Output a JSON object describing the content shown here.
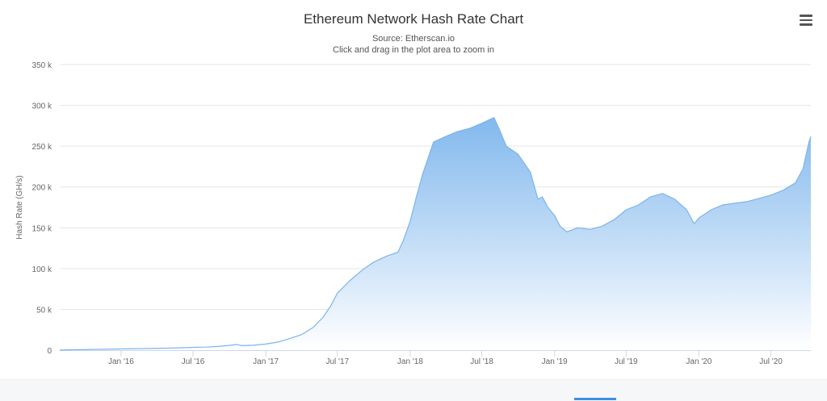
{
  "chart_data": {
    "type": "area",
    "title": "Ethereum Network Hash Rate Chart",
    "subtitle_lines": [
      "Source: Etherscan.io",
      "Click and drag in the plot area to zoom in"
    ],
    "ylabel": "Hash Rate (GH/s)",
    "xlabel": "",
    "ylim": [
      0,
      350000
    ],
    "y_ticks": [
      0,
      50000,
      100000,
      150000,
      200000,
      250000,
      300000,
      350000
    ],
    "y_tick_labels": [
      "0",
      "50 k",
      "100 k",
      "150 k",
      "200 k",
      "250 k",
      "300 k",
      "350 k"
    ],
    "x_tick_labels": [
      "Jan '16",
      "Jul '16",
      "Jan '17",
      "Jul '17",
      "Jan '18",
      "Jul '18",
      "Jan '19",
      "Jul '19",
      "Jan '20",
      "Jul '20"
    ],
    "x_tick_dates": [
      "2016-01-01",
      "2016-07-01",
      "2017-01-01",
      "2017-07-01",
      "2018-01-01",
      "2018-07-01",
      "2019-01-01",
      "2019-07-01",
      "2020-01-01",
      "2020-07-01"
    ],
    "x_range": [
      "2015-07-30",
      "2020-10-10"
    ],
    "grid": true,
    "legend": "none",
    "colors": {
      "line": "#7cb5ec",
      "fill_top": "#7cb5ec",
      "grid": "#e6e6e6",
      "axis_text": "#666666"
    },
    "series": [
      {
        "dates": [
          "2015-07-30",
          "2015-09-01",
          "2015-11-01",
          "2016-01-01",
          "2016-03-01",
          "2016-05-01",
          "2016-07-01",
          "2016-08-01",
          "2016-09-01",
          "2016-10-01",
          "2016-10-20",
          "2016-11-01",
          "2016-12-01",
          "2017-01-01",
          "2017-02-01",
          "2017-03-01",
          "2017-04-01",
          "2017-05-01",
          "2017-05-25",
          "2017-06-15",
          "2017-07-01",
          "2017-08-01",
          "2017-09-01",
          "2017-10-01",
          "2017-11-01",
          "2017-12-01",
          "2017-12-15",
          "2018-01-01",
          "2018-01-15",
          "2018-02-01",
          "2018-02-15",
          "2018-03-01",
          "2018-04-01",
          "2018-05-01",
          "2018-06-01",
          "2018-07-01",
          "2018-08-01",
          "2018-08-15",
          "2018-09-01",
          "2018-10-01",
          "2018-11-01",
          "2018-11-20",
          "2018-12-01",
          "2018-12-15",
          "2019-01-01",
          "2019-01-15",
          "2019-02-01",
          "2019-03-01",
          "2019-04-01",
          "2019-05-01",
          "2019-06-01",
          "2019-07-01",
          "2019-08-01",
          "2019-09-01",
          "2019-10-01",
          "2019-11-01",
          "2019-12-01",
          "2019-12-20",
          "2020-01-01",
          "2020-02-01",
          "2020-03-01",
          "2020-04-01",
          "2020-05-01",
          "2020-06-01",
          "2020-07-01",
          "2020-08-01",
          "2020-09-01",
          "2020-09-20",
          "2020-10-05",
          "2020-10-10"
        ],
        "values": [
          100,
          500,
          1000,
          1500,
          2000,
          2500,
          3500,
          3800,
          4500,
          5800,
          7000,
          5500,
          6000,
          7500,
          10000,
          14000,
          19000,
          28000,
          40000,
          55000,
          70000,
          85000,
          98000,
          108000,
          115000,
          120000,
          135000,
          158000,
          185000,
          215000,
          235000,
          255000,
          262000,
          268000,
          272000,
          278000,
          285000,
          270000,
          250000,
          240000,
          218000,
          185000,
          188000,
          175000,
          165000,
          152000,
          145000,
          150000,
          148000,
          152000,
          160000,
          172000,
          178000,
          188000,
          192000,
          185000,
          172000,
          155000,
          162000,
          172000,
          178000,
          180000,
          182000,
          186000,
          190000,
          196000,
          205000,
          222000,
          255000,
          262000
        ]
      }
    ]
  }
}
